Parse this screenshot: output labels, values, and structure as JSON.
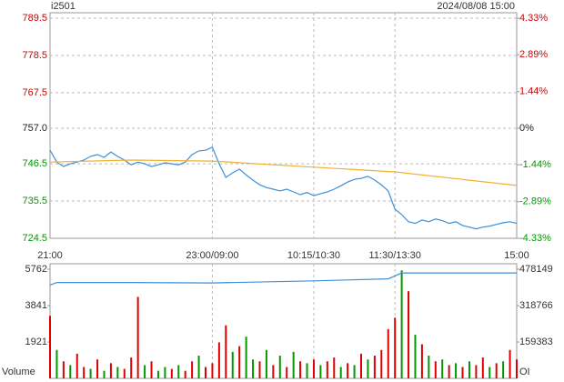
{
  "chart_data": [
    {
      "type": "line",
      "title": "i2501",
      "subtitle": "2024/08/08 15:00",
      "xlim": [
        0,
        345
      ],
      "xticks": [
        {
          "value": 0,
          "label": "21:00"
        },
        {
          "value": 120,
          "label": "23:00/09:00"
        },
        {
          "value": 195,
          "label": "10:15/10:30"
        },
        {
          "value": 255,
          "label": "11:30/13:30"
        },
        {
          "value": 345,
          "label": "15:00"
        }
      ],
      "ylim": [
        724.5,
        789.5
      ],
      "yticks": [
        {
          "value": 724.5,
          "label": "724.5"
        },
        {
          "value": 735.5,
          "label": "735.5"
        },
        {
          "value": 746.5,
          "label": "746.5"
        },
        {
          "value": 757,
          "label": "757.0"
        },
        {
          "value": 767.5,
          "label": "767.5"
        },
        {
          "value": 778.5,
          "label": "778.5"
        },
        {
          "value": 789.5,
          "label": "789.5"
        }
      ],
      "y2lim": [
        -4.33,
        4.33
      ],
      "y2ticks": [
        {
          "value": -4.33,
          "label": "-4.33%"
        },
        {
          "value": -2.89,
          "label": "-2.89%"
        },
        {
          "value": -1.44,
          "label": "-1.44%"
        },
        {
          "value": 0,
          "label": "0%"
        },
        {
          "value": 1.44,
          "label": "1.44%"
        },
        {
          "value": 2.89,
          "label": "2.89%"
        },
        {
          "value": 4.33,
          "label": "4.33%"
        }
      ],
      "grid": true,
      "series": [
        {
          "color": "#3d8fd9",
          "x": [
            0,
            5,
            10,
            15,
            20,
            25,
            30,
            35,
            40,
            45,
            50,
            55,
            60,
            65,
            70,
            75,
            80,
            85,
            90,
            95,
            100,
            105,
            110,
            115,
            120,
            125,
            130,
            135,
            140,
            145,
            150,
            155,
            160,
            165,
            170,
            175,
            180,
            185,
            190,
            195,
            200,
            205,
            210,
            215,
            220,
            225,
            230,
            235,
            240,
            245,
            250,
            255,
            260,
            265,
            270,
            275,
            280,
            285,
            290,
            295,
            300,
            305,
            310,
            315,
            320,
            325,
            330,
            335,
            340,
            345
          ],
          "values": [
            750.5,
            747,
            745.7,
            746.5,
            747,
            747.6,
            748.7,
            749.2,
            748.4,
            750,
            748.7,
            747.6,
            746.2,
            747,
            746.5,
            745.7,
            746.2,
            746.8,
            746.5,
            746.2,
            747,
            749.2,
            750.3,
            750.5,
            751.4,
            746.5,
            742.5,
            743.8,
            744.9,
            743.2,
            741.7,
            740.3,
            739.5,
            739,
            738.5,
            739,
            738.2,
            737.4,
            738,
            737.1,
            737.7,
            738.2,
            739,
            740,
            741.1,
            741.9,
            742.2,
            742.8,
            741.7,
            740.3,
            738.5,
            733.1,
            731.5,
            729.4,
            728.9,
            729.9,
            729.4,
            730.2,
            729.7,
            728.9,
            729.4,
            728.3,
            727.8,
            727.3,
            727.8,
            728.1,
            728.6,
            729.1,
            729.4,
            728.9
          ]
        },
        {
          "color": "#f0b030",
          "x": [
            0,
            60,
            120,
            195,
            255,
            345
          ],
          "values": [
            747,
            747.6,
            747.3,
            745.5,
            744.1,
            740.1
          ]
        }
      ]
    },
    {
      "type": "bar",
      "y_label": "Volume",
      "y2_label": "OI",
      "xlim": [
        0,
        345
      ],
      "xticks": [
        120,
        195,
        255
      ],
      "ylim": [
        0,
        5762
      ],
      "yticks": [
        1921,
        3841,
        5762
      ],
      "y2lim": [
        0,
        478149
      ],
      "y2ticks": [
        159383,
        318766,
        478149
      ],
      "series": [
        {
          "x": [
            0,
            5,
            10,
            15,
            20,
            25,
            30,
            35,
            40,
            45,
            50,
            55,
            60,
            65,
            70,
            75,
            80,
            85,
            90,
            95,
            100,
            105,
            110,
            115,
            120,
            125,
            130,
            135,
            140,
            145,
            150,
            155,
            160,
            165,
            170,
            175,
            180,
            185,
            190,
            195,
            200,
            205,
            210,
            215,
            220,
            225,
            230,
            235,
            240,
            245,
            250,
            255,
            260,
            265,
            270,
            275,
            280,
            285,
            290,
            295,
            300,
            305,
            310,
            315,
            320,
            325,
            330,
            335,
            340,
            345
          ],
          "values": [
            3300,
            1500,
            900,
            700,
            1300,
            600,
            500,
            1000,
            400,
            800,
            600,
            500,
            1100,
            4300,
            700,
            900,
            400,
            600,
            500,
            700,
            400,
            900,
            1200,
            600,
            800,
            1900,
            2800,
            1400,
            1700,
            2200,
            1000,
            900,
            1500,
            700,
            1200,
            600,
            1400,
            900,
            800,
            1000,
            700,
            900,
            1100,
            600,
            800,
            700,
            1300,
            1000,
            1200,
            1500,
            2600,
            3200,
            5700,
            4600,
            2300,
            1800,
            1200,
            900,
            1000,
            700,
            800,
            600,
            900,
            700,
            1100,
            600,
            800,
            900,
            1500,
            1000
          ],
          "colors": [
            "#e00000",
            "#009900",
            "#e00000",
            "#009900",
            "#e00000",
            "#e00000",
            "#009900",
            "#e00000",
            "#009900",
            "#e00000",
            "#009900",
            "#e00000",
            "#e00000",
            "#e00000",
            "#009900",
            "#e00000",
            "#009900",
            "#009900",
            "#e00000",
            "#009900",
            "#e00000",
            "#e00000",
            "#009900",
            "#e00000",
            "#e00000",
            "#e00000",
            "#e00000",
            "#009900",
            "#e00000",
            "#009900",
            "#009900",
            "#e00000",
            "#009900",
            "#e00000",
            "#009900",
            "#e00000",
            "#009900",
            "#e00000",
            "#009900",
            "#e00000",
            "#009900",
            "#e00000",
            "#e00000",
            "#009900",
            "#e00000",
            "#009900",
            "#e00000",
            "#009900",
            "#e00000",
            "#e00000",
            "#e00000",
            "#e00000",
            "#009900",
            "#e00000",
            "#009900",
            "#e00000",
            "#009900",
            "#e00000",
            "#009900",
            "#e00000",
            "#009900",
            "#e00000",
            "#009900",
            "#e00000",
            "#e00000",
            "#009900",
            "#e00000",
            "#009900",
            "#e00000",
            "#e00000"
          ]
        },
        {
          "axis": "y2",
          "color": "#3d8fd9",
          "x": [
            0,
            5,
            60,
            120,
            195,
            250,
            260,
            345
          ],
          "values": [
            409000,
            420000,
            420000,
            418000,
            427000,
            436000,
            462000,
            462000
          ]
        }
      ]
    }
  ]
}
